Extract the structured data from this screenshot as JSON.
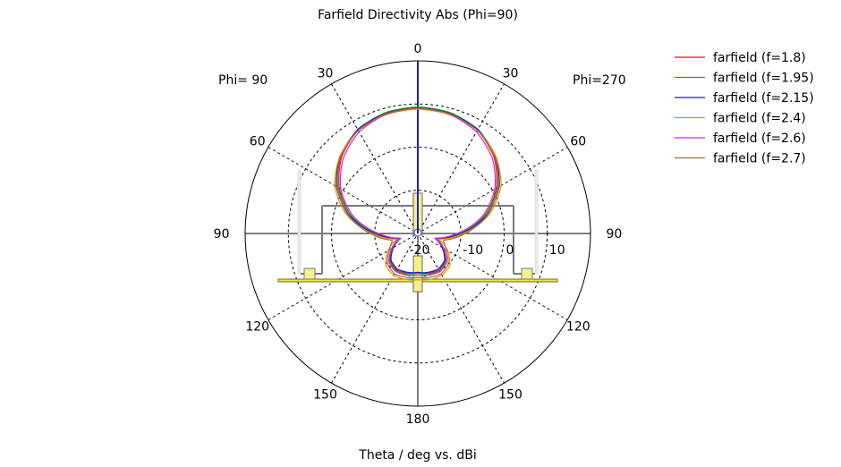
{
  "chart_data": {
    "type": "polar",
    "title": "Farfield Directivity Abs (Phi=90)",
    "xlabel": "Theta / deg vs. dBi",
    "left_side_label": "Phi= 90",
    "right_side_label": "Phi=270",
    "angle_tick_labels": [
      "0",
      "30",
      "60",
      "90",
      "120",
      "150",
      "180",
      "150",
      "120",
      "90",
      "60",
      "30"
    ],
    "radial_tick_labels": [
      "-20",
      "-10",
      "0",
      "10"
    ],
    "radial_range_dBi": [
      -20,
      20
    ],
    "grid": true,
    "legend_position": "top-right",
    "series": [
      {
        "name": "farfield (f=1.8)",
        "color": "#e8101a",
        "theta": [
          0,
          15,
          30,
          45,
          60,
          75,
          90,
          105,
          120,
          135,
          150,
          165,
          180
        ],
        "dBi": [
          9.2,
          8.9,
          7.7,
          5.0,
          1.0,
          -4.0,
          -10.0,
          -15.5,
          -13.5,
          -11.0,
          -10.2,
          -10.5,
          -11.0
        ]
      },
      {
        "name": "farfield (f=1.95)",
        "color": "#17a617",
        "theta": [
          0,
          15,
          30,
          45,
          60,
          75,
          90,
          105,
          120,
          135,
          150,
          165,
          180
        ],
        "dBi": [
          9.3,
          9.0,
          7.9,
          5.3,
          1.4,
          -4.0,
          -10.5,
          -15.5,
          -13.0,
          -10.8,
          -10.0,
          -10.3,
          -10.8
        ]
      },
      {
        "name": "farfield (f=2.15)",
        "color": "#1a1ad8",
        "theta": [
          0,
          15,
          30,
          45,
          60,
          75,
          90,
          105,
          120,
          135,
          150,
          165,
          180
        ],
        "dBi": [
          9.1,
          8.8,
          7.8,
          5.4,
          1.8,
          -3.5,
          -10.0,
          -16.0,
          -13.5,
          -11.2,
          -10.5,
          -10.7,
          -11.0
        ]
      },
      {
        "name": "farfield (f=2.4)",
        "color": "#f08c00",
        "theta": [
          0,
          15,
          30,
          45,
          60,
          75,
          90,
          105,
          120,
          135,
          150,
          165,
          180
        ],
        "dBi": [
          8.8,
          8.5,
          7.6,
          5.5,
          2.3,
          -2.8,
          -9.5,
          -15.0,
          -12.0,
          -9.5,
          -8.8,
          -9.0,
          -9.3
        ]
      },
      {
        "name": "farfield (f=2.6)",
        "color": "#e81fd3",
        "theta": [
          0,
          15,
          30,
          45,
          60,
          75,
          90,
          105,
          120,
          135,
          150,
          165,
          180
        ],
        "dBi": [
          9.0,
          8.6,
          7.2,
          4.5,
          0.6,
          -4.5,
          -11.0,
          -16.0,
          -13.0,
          -10.5,
          -9.8,
          -10.0,
          -10.4
        ]
      },
      {
        "name": "farfield (f=2.7)",
        "color": "#a0713a",
        "theta": [
          0,
          15,
          30,
          45,
          60,
          75,
          90,
          105,
          120,
          135,
          150,
          165,
          180
        ],
        "dBi": [
          9.0,
          8.7,
          7.6,
          5.2,
          1.6,
          -3.2,
          -9.0,
          -14.0,
          -12.5,
          -10.0,
          -9.2,
          -9.5,
          -9.8
        ]
      }
    ]
  }
}
